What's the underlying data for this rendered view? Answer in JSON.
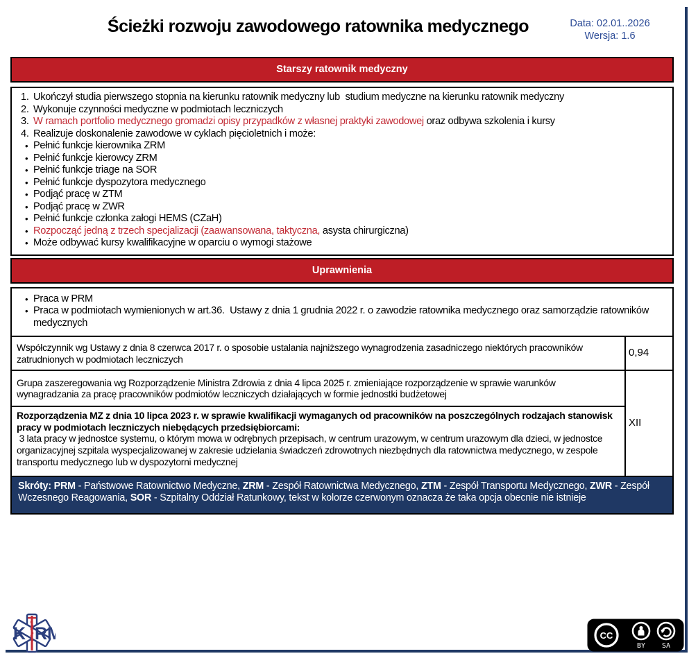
{
  "colors": {
    "red": "#BE1E26",
    "redtext": "#C22B35",
    "navy": "#1F3864",
    "blue": "#2B4A96",
    "logo": "#2B3F7E"
  },
  "header": {
    "title": "Ścieżki rozwoju zawodowego ratownika medycznego",
    "date": "Data: 02.01..2026",
    "version": "Wersja: 1.6"
  },
  "senior_section": {
    "header": "Starszy ratownik medyczny",
    "items": [
      {
        "marker": "1.",
        "segments": [
          {
            "text": "Ukończył studia pierwszego stopnia na kierunku ratownik medyczny lub  studium medyczne na kierunku ratownik medyczny"
          }
        ]
      },
      {
        "marker": "2.",
        "segments": [
          {
            "text": "Wykonuje czynności medyczne w podmiotach leczniczych"
          }
        ]
      },
      {
        "marker": "3.",
        "segments": [
          {
            "text": "W ramach portfolio medycznego gromadzi opisy przypadków z własnej praktyki zawodowej",
            "red": true
          },
          {
            "text": " oraz odbywa szkolenia i kursy"
          }
        ]
      },
      {
        "marker": "4.",
        "segments": [
          {
            "text": "Realizuje doskonalenie zawodowe w cyklach pięcioletnich i może:"
          }
        ]
      },
      {
        "marker": "•",
        "segments": [
          {
            "text": "Pełnić funkcje kierownika ZRM"
          }
        ]
      },
      {
        "marker": "•",
        "segments": [
          {
            "text": "Pełnić funkcje kierowcy ZRM"
          }
        ]
      },
      {
        "marker": "•",
        "segments": [
          {
            "text": "Pełnić funkcje triage na SOR"
          }
        ]
      },
      {
        "marker": "•",
        "segments": [
          {
            "text": "Pełnić funkcje dyspozytora medycznego"
          }
        ]
      },
      {
        "marker": "•",
        "segments": [
          {
            "text": "Podjąć pracę w ZTM"
          }
        ]
      },
      {
        "marker": "•",
        "segments": [
          {
            "text": "Podjąć pracę w ZWR"
          }
        ]
      },
      {
        "marker": "•",
        "segments": [
          {
            "text": "Pełnić funkcje członka załogi HEMS (CZaH)"
          }
        ]
      },
      {
        "marker": "•",
        "segments": [
          {
            "text": "Rozpocząć jedną z trzech specjalizacji (zaawansowana, taktyczna,",
            "red": true
          },
          {
            "text": " asysta chirurgiczna)"
          }
        ]
      },
      {
        "marker": "•",
        "segments": [
          {
            "text": "Może odbywać kursy kwalifikacyjne w oparciu o wymogi stażowe"
          }
        ]
      }
    ]
  },
  "rights_section": {
    "header": "Uprawnienia",
    "items": [
      {
        "marker": "•",
        "segments": [
          {
            "text": "Praca w PRM"
          }
        ]
      },
      {
        "marker": "•",
        "segments": [
          {
            "text": "Praca w podmiotach wymienionych w art.36.  Ustawy z dnia 1 grudnia 2022 r. o zawodzie ratownika medycznego oraz samorządzie ratowników medycznych"
          }
        ]
      }
    ]
  },
  "table": {
    "rows": [
      {
        "segments": [
          {
            "text": "Współczynnik wg Ustawy z dnia 8 czerwca 2017 r. o sposobie ustalania najniższego wynagrodzenia zasadniczego niektórych pracowników zatrudnionych w podmiotach leczniczych"
          }
        ],
        "value": "0,94"
      },
      {
        "segments": [
          {
            "text": "Grupa zaszeregowania wg Rozporządzenie Ministra Zdrowia z dnia 4 lipca 2025 r. zmieniające rozporządzenie w sprawie warunków wynagradzania za pracę pracowników podmiotów leczniczych działających w formie jednostki budżetowej"
          }
        ],
        "value": ""
      },
      {
        "segments": [
          {
            "text": "Rozporządzenia MZ z dnia 10 lipca 2023 r. w sprawie kwalifikacji wymaganych od pracowników na poszczególnych rodzajach stanowisk pracy w podmiotach leczniczych niebędących przedsiębiorcami:",
            "bold": true
          },
          {
            "text": "\n 3 lata pracy w jednostce systemu, o którym mowa w odrębnych przepisach, w centrum urazowym, w centrum urazowym dla dzieci, w jednostce organizacyjnej szpitala wyspecjalizowanej w zakresie udzielania świadczeń zdrowotnych niezbędnych dla ratownictwa medycznego, w zespole transportu medycznego lub w dyspozytorni medycznej"
          }
        ],
        "value": "XII"
      }
    ]
  },
  "footer": {
    "segments": [
      {
        "text": "Skróty: PRM",
        "bold": true
      },
      {
        "text": " - Państwowe Ratownictwo Medyczne, "
      },
      {
        "text": "ZRM",
        "bold": true
      },
      {
        "text": " - Zespół Ratownictwa Medycznego, "
      },
      {
        "text": "ZTM",
        "bold": true
      },
      {
        "text": " - Zespół Transportu Medycznego, "
      },
      {
        "text": "ZWR",
        "bold": true
      },
      {
        "text": " - Zespół Wczesnego Reagowania, "
      },
      {
        "text": "SOR",
        "bold": true
      },
      {
        "text": " - Szpitalny Oddział Ratunkowy, tekst w kolorze czerwonym oznacza że taka opcja obecnie nie istnieje"
      }
    ]
  },
  "branding": {
    "logo_k": "K",
    "logo_rm": "RM",
    "license": {
      "cc": "CC",
      "by": "BY",
      "sa": "SA"
    }
  }
}
